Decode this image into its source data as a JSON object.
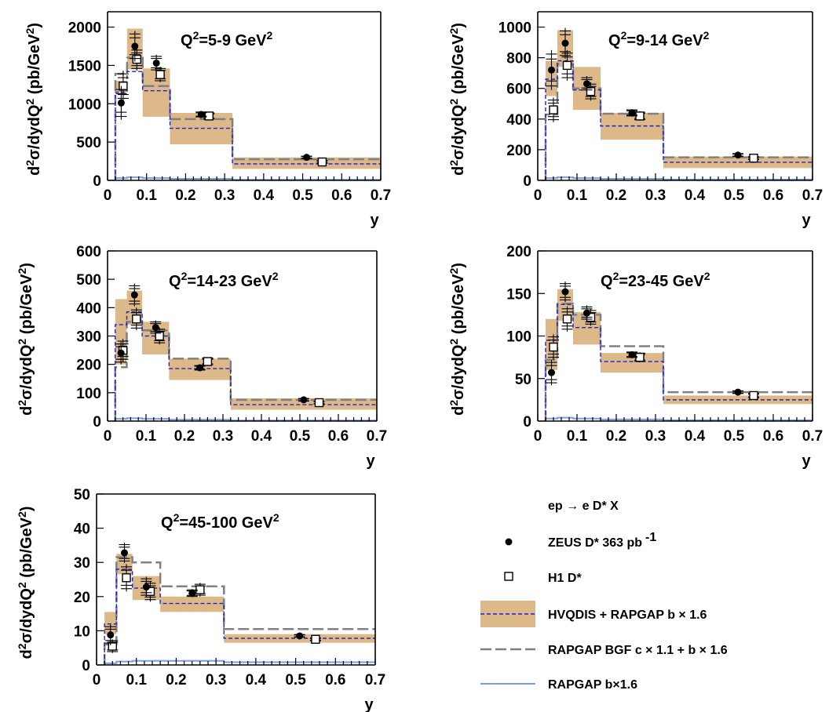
{
  "chart_data": [
    {
      "type": "line",
      "title": "Q²=5-9 GeV²",
      "xlabel": "y",
      "ylabel": "d²σ/dydQ² (pb/GeV²)",
      "xlim": [
        0,
        0.7
      ],
      "ylim": [
        0,
        2200
      ],
      "xticks": [
        "0",
        "0.1",
        "0.2",
        "0.3",
        "0.4",
        "0.5",
        "0.6",
        "0.7"
      ],
      "yticks": [
        "0",
        "500",
        "1000",
        "1500",
        "2000"
      ],
      "ytick_values": [
        0,
        500,
        1000,
        1500,
        2000
      ],
      "bins": [
        0.02,
        0.05,
        0.09,
        0.16,
        0.32,
        0.7
      ],
      "zeus": [
        {
          "x": 0.035,
          "y": 1010,
          "err": 220
        },
        {
          "x": 0.07,
          "y": 1750,
          "err": 200
        },
        {
          "x": 0.125,
          "y": 1530,
          "err": 110
        },
        {
          "x": 0.24,
          "y": 860,
          "err": 40
        },
        {
          "x": 0.51,
          "y": 300,
          "err": 20
        }
      ],
      "h1": [
        {
          "x": 0.04,
          "y": 1230,
          "err": 200
        },
        {
          "x": 0.075,
          "y": 1580,
          "err": 150
        },
        {
          "x": 0.135,
          "y": 1380,
          "err": 100
        },
        {
          "x": 0.26,
          "y": 840,
          "err": 50
        },
        {
          "x": 0.55,
          "y": 240,
          "err": 20
        }
      ],
      "hvqdis_band": [
        [
          1150,
          1300
        ],
        [
          1450,
          1980
        ],
        [
          830,
          1460
        ],
        [
          470,
          880
        ],
        [
          150,
          300
        ]
      ],
      "hvqdis_central": [
        1150,
        1420,
        1170,
        680,
        215
      ],
      "rapgap_bgf": [
        1390,
        1600,
        1230,
        800,
        275
      ],
      "rapgap_b": [
        30,
        40,
        30,
        20,
        8
      ]
    },
    {
      "type": "line",
      "title": "Q²=9-14 GeV²",
      "xlabel": "y",
      "ylabel": "d²σ/dydQ² (pb/GeV²)",
      "xlim": [
        0,
        0.7
      ],
      "ylim": [
        0,
        1100
      ],
      "xticks": [
        "0",
        "0.1",
        "0.2",
        "0.3",
        "0.4",
        "0.5",
        "0.6",
        "0.7"
      ],
      "yticks": [
        "0",
        "200",
        "400",
        "600",
        "800",
        "1000"
      ],
      "ytick_values": [
        0,
        200,
        400,
        600,
        800,
        1000
      ],
      "bins": [
        0.02,
        0.05,
        0.09,
        0.16,
        0.32,
        0.7
      ],
      "zeus": [
        {
          "x": 0.035,
          "y": 720,
          "err": 130
        },
        {
          "x": 0.07,
          "y": 895,
          "err": 100
        },
        {
          "x": 0.125,
          "y": 630,
          "err": 50
        },
        {
          "x": 0.24,
          "y": 440,
          "err": 25
        },
        {
          "x": 0.51,
          "y": 165,
          "err": 12
        }
      ],
      "h1": [
        {
          "x": 0.04,
          "y": 460,
          "err": 80
        },
        {
          "x": 0.075,
          "y": 750,
          "err": 100
        },
        {
          "x": 0.135,
          "y": 580,
          "err": 60
        },
        {
          "x": 0.26,
          "y": 420,
          "err": 30
        },
        {
          "x": 0.55,
          "y": 145,
          "err": 12
        }
      ],
      "hvqdis_band": [
        [
          550,
          780
        ],
        [
          740,
          980
        ],
        [
          460,
          740
        ],
        [
          265,
          440
        ],
        [
          80,
          155
        ]
      ],
      "hvqdis_central": [
        660,
        780,
        590,
        355,
        118
      ],
      "rapgap_bgf": [
        430,
        760,
        600,
        435,
        150
      ],
      "rapgap_b": [
        15,
        20,
        15,
        10,
        5
      ]
    },
    {
      "type": "line",
      "title": "Q²=14-23 GeV²",
      "xlabel": "y",
      "ylabel": "d²σ/dydQ² (pb/GeV²)",
      "xlim": [
        0,
        0.7
      ],
      "ylim": [
        0,
        600
      ],
      "xticks": [
        "0",
        "0.1",
        "0.2",
        "0.3",
        "0.4",
        "0.5",
        "0.6",
        "0.7"
      ],
      "yticks": [
        "0",
        "100",
        "200",
        "300",
        "400",
        "500",
        "600"
      ],
      "ytick_values": [
        0,
        100,
        200,
        300,
        400,
        500,
        600
      ],
      "bins": [
        0.02,
        0.05,
        0.09,
        0.16,
        0.32,
        0.7
      ],
      "zeus": [
        {
          "x": 0.035,
          "y": 240,
          "err": 40
        },
        {
          "x": 0.07,
          "y": 445,
          "err": 40
        },
        {
          "x": 0.125,
          "y": 330,
          "err": 25
        },
        {
          "x": 0.24,
          "y": 188,
          "err": 10
        },
        {
          "x": 0.51,
          "y": 75,
          "err": 6
        }
      ],
      "h1": [
        {
          "x": 0.04,
          "y": 250,
          "err": 40
        },
        {
          "x": 0.075,
          "y": 360,
          "err": 40
        },
        {
          "x": 0.135,
          "y": 300,
          "err": 30
        },
        {
          "x": 0.26,
          "y": 210,
          "err": 15
        },
        {
          "x": 0.55,
          "y": 65,
          "err": 6
        }
      ],
      "hvqdis_band": [
        [
          200,
          430
        ],
        [
          340,
          460
        ],
        [
          235,
          350
        ],
        [
          145,
          220
        ],
        [
          40,
          80
        ]
      ],
      "hvqdis_central": [
        340,
        385,
        300,
        185,
        58
      ],
      "rapgap_bgf": [
        190,
        350,
        320,
        220,
        75
      ],
      "rapgap_b": [
        8,
        10,
        8,
        5,
        2
      ]
    },
    {
      "type": "line",
      "title": "Q²=23-45 GeV²",
      "xlabel": "y",
      "ylabel": "d²σ/dydQ² (pb/GeV²)",
      "xlim": [
        0,
        0.7
      ],
      "ylim": [
        0,
        200
      ],
      "xticks": [
        "0",
        "0.1",
        "0.2",
        "0.3",
        "0.4",
        "0.5",
        "0.6",
        "0.7"
      ],
      "yticks": [
        "0",
        "50",
        "100",
        "150",
        "200"
      ],
      "ytick_values": [
        0,
        50,
        100,
        150,
        200
      ],
      "bins": [
        0.02,
        0.05,
        0.09,
        0.16,
        0.32,
        0.7
      ],
      "zeus": [
        {
          "x": 0.035,
          "y": 57,
          "err": 15
        },
        {
          "x": 0.07,
          "y": 152,
          "err": 12
        },
        {
          "x": 0.125,
          "y": 127,
          "err": 9
        },
        {
          "x": 0.24,
          "y": 78,
          "err": 4
        },
        {
          "x": 0.51,
          "y": 34,
          "err": 2
        }
      ],
      "h1": [
        {
          "x": 0.04,
          "y": 87,
          "err": 15
        },
        {
          "x": 0.075,
          "y": 120,
          "err": 15
        },
        {
          "x": 0.135,
          "y": 122,
          "err": 10
        },
        {
          "x": 0.26,
          "y": 75,
          "err": 6
        },
        {
          "x": 0.55,
          "y": 30,
          "err": 3
        }
      ],
      "hvqdis_band": [
        [
          60,
          120
        ],
        [
          118,
          155
        ],
        [
          90,
          128
        ],
        [
          57,
          80
        ],
        [
          20,
          30
        ]
      ],
      "hvqdis_central": [
        95,
        137,
        110,
        70,
        25
      ],
      "rapgap_bgf": [
        72,
        138,
        125,
        88,
        34
      ],
      "rapgap_b": [
        3,
        4,
        3,
        2,
        1
      ]
    },
    {
      "type": "line",
      "title": "Q²=45-100 GeV²",
      "xlabel": "y",
      "ylabel": "d²σ/dydQ² (pb/GeV²)",
      "xlim": [
        0,
        0.7
      ],
      "ylim": [
        0,
        50
      ],
      "xticks": [
        "0",
        "0.1",
        "0.2",
        "0.3",
        "0.4",
        "0.5",
        "0.6",
        "0.7"
      ],
      "yticks": [
        "0",
        "10",
        "20",
        "30",
        "40",
        "50"
      ],
      "ytick_values": [
        0,
        10,
        20,
        30,
        40,
        50
      ],
      "bins": [
        0.02,
        0.05,
        0.09,
        0.16,
        0.32,
        0.7
      ],
      "zeus": [
        {
          "x": 0.035,
          "y": 8.8,
          "err": 3
        },
        {
          "x": 0.07,
          "y": 32.8,
          "err": 3
        },
        {
          "x": 0.125,
          "y": 22.8,
          "err": 3
        },
        {
          "x": 0.24,
          "y": 21,
          "err": 1.2
        },
        {
          "x": 0.51,
          "y": 8.5,
          "err": 0.5
        }
      ],
      "h1": [
        {
          "x": 0.04,
          "y": 5.5,
          "err": 2
        },
        {
          "x": 0.075,
          "y": 25.5,
          "err": 4
        },
        {
          "x": 0.135,
          "y": 21.5,
          "err": 3
        },
        {
          "x": 0.26,
          "y": 22,
          "err": 2
        },
        {
          "x": 0.55,
          "y": 7.5,
          "err": 0.5
        }
      ],
      "hvqdis_band": [
        [
          9,
          15.5
        ],
        [
          26.5,
          32.5
        ],
        [
          19,
          26
        ],
        [
          15.5,
          20
        ],
        [
          6.5,
          9
        ]
      ],
      "hvqdis_central": [
        12,
        28,
        22.5,
        18,
        7.8
      ],
      "rapgap_bgf": [
        6,
        31.5,
        30,
        23,
        10.5
      ],
      "rapgap_b": [
        0.5,
        1,
        1.2,
        1.2,
        0.8
      ]
    }
  ],
  "legend": {
    "process": "ep → e D* X",
    "zeus": "ZEUS D* 363 pb",
    "zeus_sup": "-1",
    "h1": "H1 D*",
    "hvqdis": "HVQDIS + RAPGAP b × 1.6",
    "rapgap_bgf": "RAPGAP BGF c × 1.1 + b × 1.6",
    "rapgap_b": "RAPGAP b×1.6"
  },
  "colors": {
    "band": "#ddb98a",
    "hvqdis_line": "#2222cc",
    "rapgap_bgf_line": "#808080",
    "rapgap_b_line": "#7a9ee0",
    "marker": "#000000"
  }
}
